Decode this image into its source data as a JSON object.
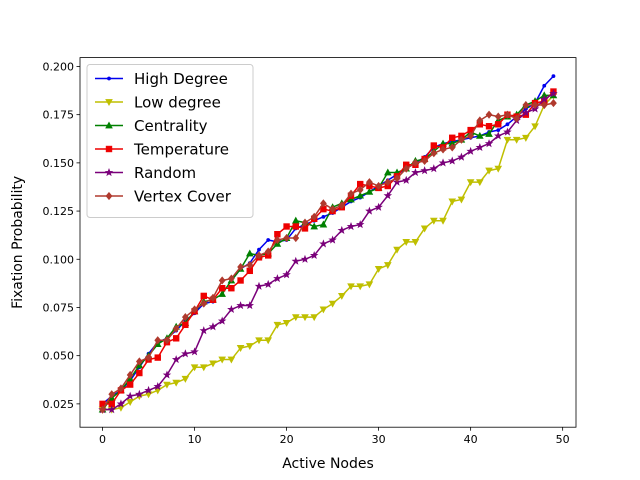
{
  "chart_data": {
    "type": "line",
    "title": "",
    "xlabel": "Active Nodes",
    "ylabel": "Fixation Probability",
    "xlim": [
      -2.45,
      51.45
    ],
    "ylim": [
      0.0129,
      0.2046
    ],
    "xticks": [
      0,
      10,
      20,
      30,
      40,
      50
    ],
    "yticks": [
      0.025,
      0.05,
      0.075,
      0.1,
      0.125,
      0.15,
      0.175,
      0.2
    ],
    "xtick_labels": [
      "0",
      "10",
      "20",
      "30",
      "40",
      "50"
    ],
    "ytick_labels": [
      "0.025",
      "0.050",
      "0.075",
      "0.100",
      "0.125",
      "0.150",
      "0.175",
      "0.200"
    ],
    "grid": false,
    "legend_position": "upper-left",
    "x": [
      0,
      1,
      2,
      3,
      4,
      5,
      6,
      7,
      8,
      9,
      10,
      11,
      12,
      13,
      14,
      15,
      16,
      17,
      18,
      19,
      20,
      21,
      22,
      23,
      24,
      25,
      26,
      27,
      28,
      29,
      30,
      31,
      32,
      33,
      34,
      35,
      36,
      37,
      38,
      39,
      40,
      41,
      42,
      43,
      44,
      45,
      46,
      47,
      48,
      49
    ],
    "series": [
      {
        "name": "High Degree",
        "color": "#0000ee",
        "marker": "point",
        "values": [
          0.025,
          0.029,
          0.032,
          0.037,
          0.044,
          0.051,
          0.057,
          0.059,
          0.063,
          0.068,
          0.072,
          0.077,
          0.078,
          null,
          0.089,
          0.095,
          0.098,
          0.105,
          0.11,
          0.109,
          0.11,
          0.116,
          0.118,
          0.12,
          0.122,
          0.124,
          0.127,
          0.13,
          0.132,
          0.135,
          0.138,
          0.141,
          0.144,
          0.147,
          0.15,
          0.153,
          0.158,
          0.16,
          0.161,
          0.162,
          0.163,
          0.164,
          0.166,
          0.167,
          0.17,
          0.174,
          0.178,
          0.181,
          0.19,
          0.195
        ]
      },
      {
        "name": "Low degree",
        "color": "#bfbf00",
        "marker": "triangle-down",
        "values": [
          0.022,
          0.022,
          0.023,
          0.026,
          0.029,
          0.03,
          0.032,
          0.035,
          0.036,
          0.038,
          0.044,
          0.044,
          0.046,
          0.048,
          0.048,
          0.054,
          0.055,
          0.058,
          0.058,
          0.066,
          0.067,
          0.07,
          0.07,
          0.07,
          0.074,
          0.077,
          0.081,
          0.086,
          0.086,
          0.087,
          0.095,
          0.097,
          0.105,
          0.109,
          0.109,
          0.116,
          0.12,
          0.12,
          0.13,
          0.131,
          0.14,
          0.14,
          0.146,
          0.147,
          0.162,
          0.162,
          0.163,
          0.169,
          0.18,
          0.185
        ]
      },
      {
        "name": "Centrality",
        "color": "#008000",
        "marker": "triangle-up",
        "values": [
          0.022,
          0.028,
          0.032,
          0.038,
          0.045,
          0.05,
          0.056,
          0.059,
          0.065,
          0.067,
          0.073,
          0.078,
          0.079,
          0.082,
          0.089,
          0.095,
          0.103,
          0.102,
          0.103,
          0.108,
          0.111,
          0.12,
          0.119,
          0.117,
          0.118,
          0.127,
          0.129,
          0.131,
          0.133,
          0.135,
          0.137,
          0.145,
          0.145,
          0.147,
          0.151,
          0.152,
          0.156,
          0.16,
          0.16,
          0.162,
          0.166,
          0.164,
          0.165,
          0.172,
          0.174,
          0.175,
          0.18,
          0.182,
          0.185,
          0.185
        ]
      },
      {
        "name": "Temperature",
        "color": "#ee0000",
        "marker": "square",
        "values": [
          0.025,
          0.025,
          0.032,
          0.035,
          0.041,
          0.048,
          0.049,
          0.057,
          0.059,
          0.066,
          0.073,
          0.081,
          0.079,
          0.085,
          0.085,
          0.089,
          0.094,
          0.101,
          0.102,
          0.113,
          0.117,
          0.117,
          0.116,
          0.121,
          0.126,
          0.125,
          0.127,
          0.133,
          0.139,
          0.138,
          0.137,
          0.138,
          0.143,
          0.149,
          0.149,
          0.152,
          0.159,
          0.158,
          0.163,
          0.164,
          0.167,
          0.17,
          0.169,
          0.17,
          0.175,
          0.174,
          0.175,
          0.181,
          0.182,
          0.187
        ]
      },
      {
        "name": "Random",
        "color": "#7a007a",
        "marker": "star",
        "values": [
          0.022,
          0.022,
          0.025,
          0.029,
          0.03,
          0.032,
          0.034,
          0.04,
          0.048,
          0.051,
          0.052,
          0.063,
          0.065,
          0.068,
          0.074,
          0.076,
          0.076,
          0.086,
          0.087,
          0.09,
          0.092,
          0.099,
          0.1,
          0.102,
          0.108,
          0.11,
          0.115,
          0.117,
          0.118,
          0.125,
          0.127,
          0.133,
          0.14,
          0.141,
          0.145,
          0.146,
          0.147,
          0.15,
          0.151,
          0.153,
          0.156,
          0.158,
          0.16,
          0.164,
          0.166,
          0.172,
          0.176,
          0.178,
          0.183,
          0.186
        ]
      },
      {
        "name": "Vertex Cover",
        "color": "#b03a2e",
        "marker": "diamond",
        "values": [
          0.022,
          0.03,
          0.033,
          0.04,
          0.047,
          0.049,
          0.058,
          0.058,
          0.064,
          0.07,
          0.074,
          0.077,
          0.08,
          0.089,
          0.09,
          0.096,
          0.097,
          0.102,
          0.104,
          0.11,
          0.111,
          0.111,
          0.119,
          0.122,
          0.129,
          0.126,
          0.128,
          0.134,
          0.136,
          0.14,
          0.138,
          0.14,
          0.142,
          0.147,
          0.15,
          0.151,
          0.155,
          0.157,
          0.158,
          0.162,
          0.164,
          0.172,
          0.175,
          0.174,
          0.175,
          0.173,
          0.18,
          0.18,
          0.18,
          0.181
        ]
      }
    ]
  }
}
